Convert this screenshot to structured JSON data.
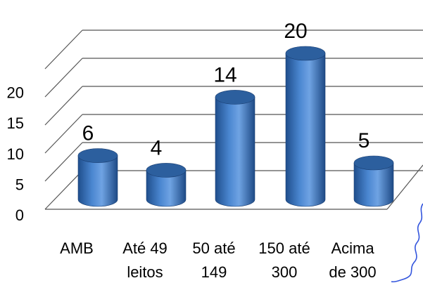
{
  "chart_data": {
    "type": "bar",
    "bar_style": "3d-cylinder",
    "categories": [
      [
        "AMB"
      ],
      [
        "Até 49",
        "leitos"
      ],
      [
        "50 até",
        "149"
      ],
      [
        "150 até",
        "300"
      ],
      [
        "Acima",
        "de 300"
      ]
    ],
    "values": [
      6,
      4,
      14,
      20,
      5
    ],
    "data_labels": [
      "6",
      "4",
      "14",
      "20",
      "5"
    ],
    "yticks": [
      0,
      5,
      10,
      15,
      20
    ],
    "ylim": [
      0,
      25
    ],
    "grid": true,
    "legend": "none",
    "title": "",
    "xlabel": "",
    "ylabel": ""
  },
  "colors": {
    "bar_dark": "#1f4e8c",
    "bar_mid": "#4a86d0",
    "bar_light": "#7fb0ea",
    "bar_top": "#2c5f9e",
    "grid": "#555555",
    "background": "#ffffff",
    "squiggle": "#3355dd"
  }
}
